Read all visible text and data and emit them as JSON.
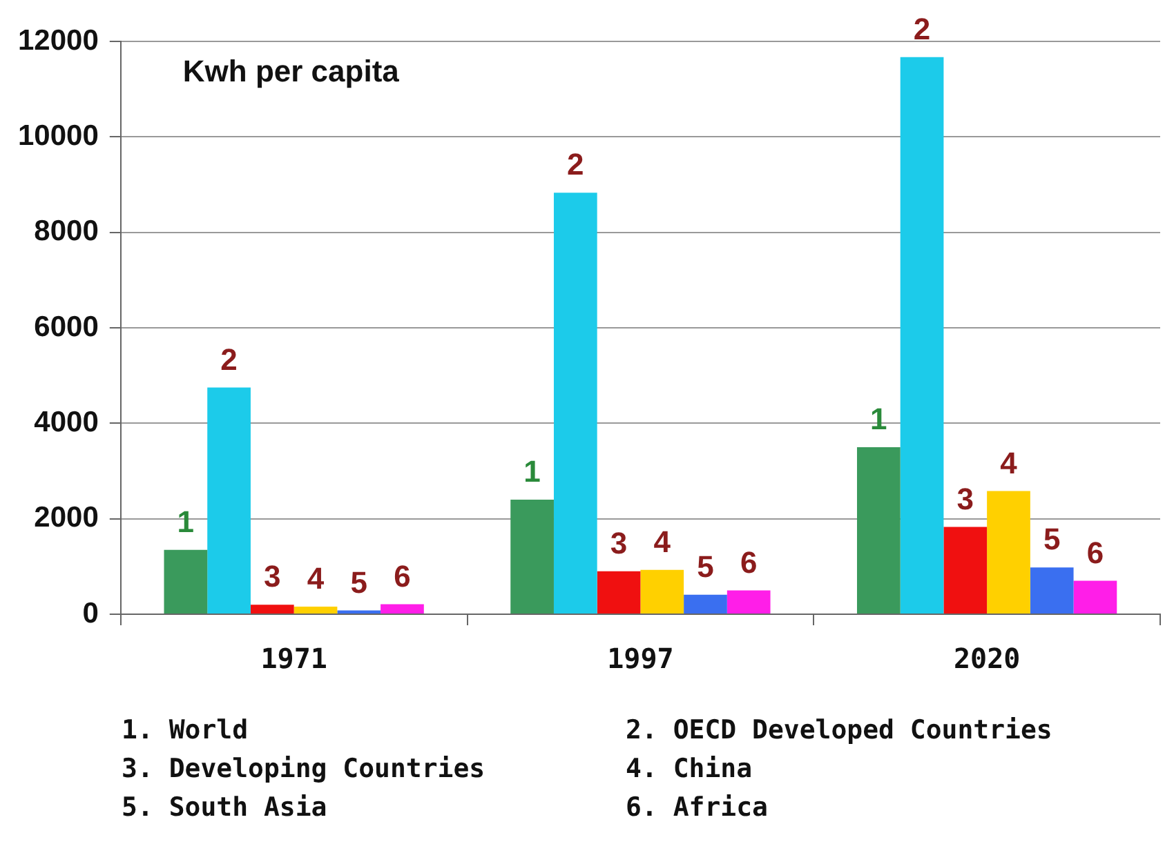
{
  "chart_data": {
    "type": "bar",
    "title": "Kwh per capita",
    "categories": [
      "1971",
      "1997",
      "2020"
    ],
    "series": [
      {
        "name": "1",
        "color": "#3a9a5c",
        "values": [
          1350,
          2400,
          3500
        ]
      },
      {
        "name": "2",
        "color": "#1ccbea",
        "values": [
          4750,
          8830,
          11670
        ]
      },
      {
        "name": "3",
        "color": "#f01010",
        "values": [
          200,
          900,
          1830
        ]
      },
      {
        "name": "4",
        "color": "#ffd000",
        "values": [
          160,
          930,
          2580
        ]
      },
      {
        "name": "5",
        "color": "#3a6ff0",
        "values": [
          80,
          410,
          980
        ]
      },
      {
        "name": "6",
        "color": "#ff1ee8",
        "values": [
          210,
          500,
          700
        ]
      }
    ],
    "ylim": [
      0,
      12000
    ],
    "yticks": [
      0,
      2000,
      4000,
      6000,
      8000,
      10000,
      12000
    ],
    "grid": "y",
    "annotations": [
      "1. World",
      "2. OECD Developed Countries",
      "3. Developing Countries",
      "4. China",
      "5. South Asia",
      "6. Africa"
    ]
  }
}
